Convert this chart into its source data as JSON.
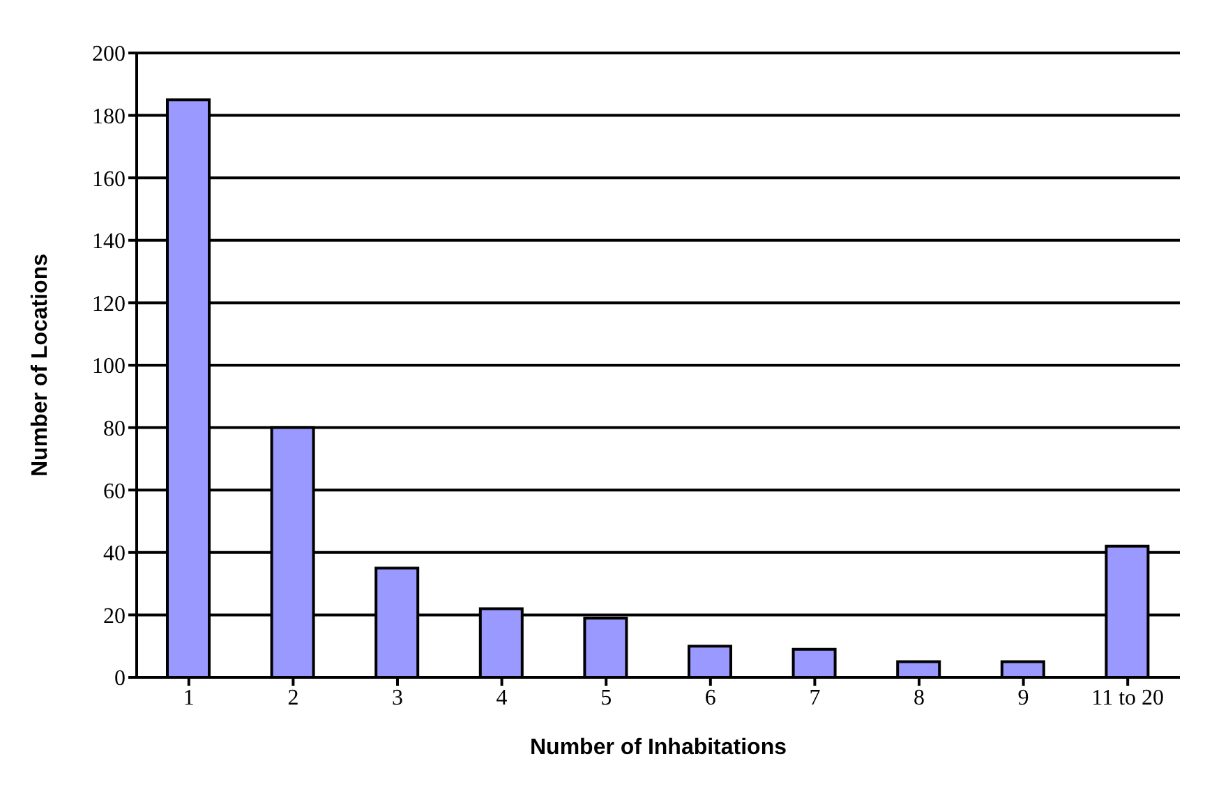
{
  "chart_data": {
    "type": "bar",
    "xlabel": "Number of Inhabitations",
    "ylabel": "Number of Locations",
    "categories": [
      "1",
      "2",
      "3",
      "4",
      "5",
      "6",
      "7",
      "8",
      "9",
      "11 to 20"
    ],
    "values": [
      185,
      80,
      35,
      22,
      19,
      10,
      9,
      5,
      5,
      42
    ],
    "color": "#9999ff",
    "ylim": [
      0,
      200
    ],
    "yticks": [
      0,
      20,
      40,
      60,
      80,
      100,
      120,
      140,
      160,
      180,
      200
    ],
    "grid": "y"
  }
}
